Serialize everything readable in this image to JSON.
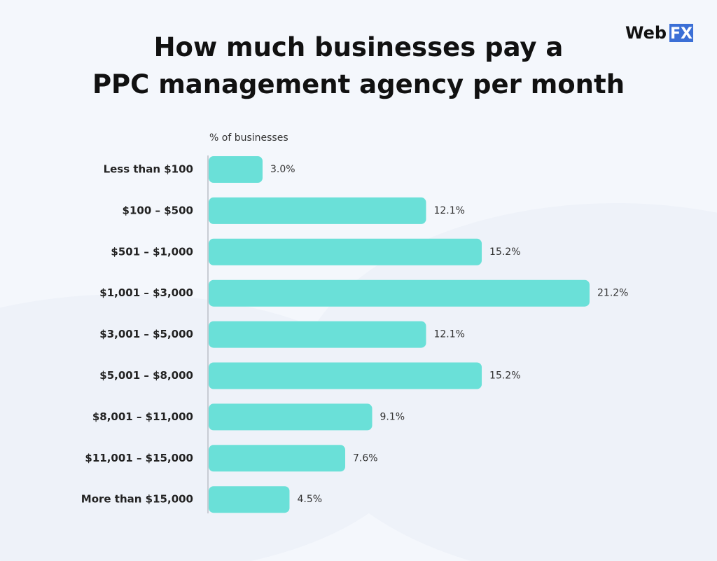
{
  "logo": {
    "text": "Web",
    "badge": "FX"
  },
  "chart_data": {
    "type": "bar",
    "orientation": "horizontal",
    "title": [
      "How much businesses pay a",
      "PPC management agency per month"
    ],
    "x_label": "% of businesses",
    "categories": [
      "Less than $100",
      "$100 – $500",
      "$501 – $1,000",
      "$1,001 – $3,000",
      "$3,001 – $5,000",
      "$5,001 – $8,000",
      "$8,001 – $11,000",
      "$11,001 – $15,000",
      "More than $15,000"
    ],
    "values": [
      3.0,
      12.1,
      15.2,
      21.2,
      12.1,
      15.2,
      9.1,
      7.6,
      4.5
    ],
    "value_labels": [
      "3.0%",
      "12.1%",
      "15.2%",
      "21.2%",
      "12.1%",
      "15.2%",
      "9.1%",
      "7.6%",
      "4.5%"
    ],
    "color": "#6ae0d8"
  }
}
